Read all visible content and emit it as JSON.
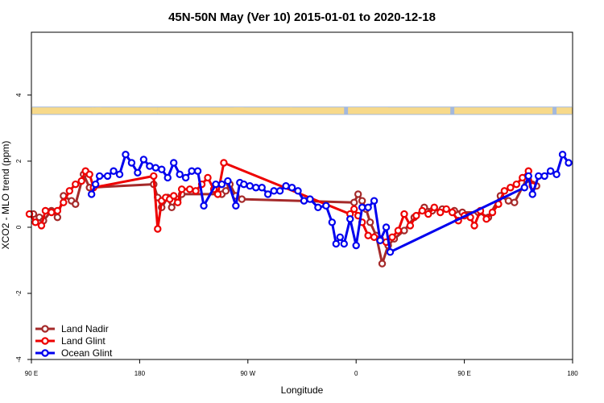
{
  "chart_data": {
    "type": "line",
    "title": "45N-50N May (Ver 10)   2015-01-01 to 2020-12-18",
    "xlabel": "Longitude",
    "ylabel": "XCO2 - MLO trend (ppm)",
    "xlim": [
      -90,
      180
    ],
    "ylim": [
      -4,
      5.9
    ],
    "x_ticks": [
      {
        "value": -90,
        "label": "90 E"
      },
      {
        "value": -36,
        "label": "180"
      },
      {
        "value": 18,
        "label": "90 W"
      },
      {
        "value": 72,
        "label": "0"
      },
      {
        "value": 126,
        "label": "90 E"
      },
      {
        "value": 180,
        "label": "180"
      }
    ],
    "y_ticks": [
      {
        "value": -4,
        "label": "-4"
      },
      {
        "value": -2,
        "label": "-2"
      },
      {
        "value": 0,
        "label": "0"
      },
      {
        "value": 2,
        "label": "2"
      },
      {
        "value": 4,
        "label": "4"
      }
    ],
    "grid": false,
    "legend_position": "bottom-left",
    "map_strip": {
      "y_range": [
        3.4,
        3.65
      ],
      "ocean_color": "#a3b8dd",
      "land_color": "#f7d98a",
      "land_segments": [
        [
          -90,
          -60
        ],
        [
          -59,
          -60
        ],
        [
          -58,
          -55
        ],
        [
          -60,
          -27
        ],
        [
          -27,
          16
        ],
        [
          11,
          40
        ],
        [
          39,
          66
        ],
        [
          68,
          88
        ],
        [
          68,
          119
        ],
        [
          121,
          170
        ],
        [
          172,
          180
        ]
      ]
    },
    "series": [
      {
        "name": "Land Nadir",
        "color": "#a52a2a",
        "points": [
          [
            -89,
            0.4
          ],
          [
            -86,
            0.3
          ],
          [
            -84,
            0.2
          ],
          [
            -80,
            0.5
          ],
          [
            -77,
            0.3
          ],
          [
            -74,
            0.95
          ],
          [
            -70,
            0.8
          ],
          [
            -68,
            0.7
          ],
          [
            -64,
            1.6
          ],
          [
            -61,
            1.2
          ],
          [
            -29,
            1.3
          ],
          [
            -27,
            0.9
          ],
          [
            -25,
            0.6
          ],
          [
            -22,
            0.9
          ],
          [
            -20,
            0.6
          ],
          [
            -17,
            0.85
          ],
          [
            -15,
            1.0
          ],
          [
            5,
            1.0
          ],
          [
            7,
            1.1
          ],
          [
            9,
            1.3
          ],
          [
            12,
            0.95
          ],
          [
            15,
            0.85
          ],
          [
            71,
            0.75
          ],
          [
            73,
            1.0
          ],
          [
            75,
            0.8
          ],
          [
            77,
            0.55
          ],
          [
            79,
            0.15
          ],
          [
            82,
            -0.25
          ],
          [
            85,
            -1.1
          ],
          [
            88,
            -0.55
          ],
          [
            91,
            -0.35
          ],
          [
            96,
            -0.1
          ],
          [
            101,
            0.3
          ],
          [
            106,
            0.6
          ],
          [
            110,
            0.5
          ],
          [
            115,
            0.55
          ],
          [
            121,
            0.5
          ],
          [
            125,
            0.45
          ],
          [
            133,
            0.45
          ],
          [
            138,
            0.3
          ],
          [
            144,
            0.95
          ],
          [
            148,
            0.8
          ],
          [
            151,
            0.75
          ],
          [
            157,
            1.45
          ],
          [
            160,
            1.3
          ],
          [
            162,
            1.25
          ]
        ]
      },
      {
        "name": "Land Glint",
        "color": "#ee0000",
        "points": [
          [
            -91,
            0.4
          ],
          [
            -88,
            0.15
          ],
          [
            -85,
            0.05
          ],
          [
            -83,
            0.5
          ],
          [
            -80,
            0.45
          ],
          [
            -77,
            0.5
          ],
          [
            -74,
            0.75
          ],
          [
            -71,
            1.1
          ],
          [
            -68,
            1.3
          ],
          [
            -65,
            1.4
          ],
          [
            -63,
            1.7
          ],
          [
            -61,
            1.6
          ],
          [
            -59,
            1.2
          ],
          [
            -29,
            1.55
          ],
          [
            -27,
            -0.05
          ],
          [
            -25,
            0.8
          ],
          [
            -23,
            0.9
          ],
          [
            -21,
            0.85
          ],
          [
            -19,
            0.95
          ],
          [
            -17,
            0.75
          ],
          [
            -15,
            1.15
          ],
          [
            -11,
            1.15
          ],
          [
            -8,
            1.1
          ],
          [
            -5,
            1.3
          ],
          [
            -2,
            1.5
          ],
          [
            1,
            1.15
          ],
          [
            3,
            1.0
          ],
          [
            6,
            1.95
          ],
          [
            69,
            0.4
          ],
          [
            71,
            0.55
          ],
          [
            73,
            0.35
          ],
          [
            75,
            0.15
          ],
          [
            78,
            -0.25
          ],
          [
            81,
            -0.3
          ],
          [
            84,
            -0.35
          ],
          [
            87,
            -0.45
          ],
          [
            90,
            -0.3
          ],
          [
            93,
            -0.1
          ],
          [
            96,
            0.4
          ],
          [
            99,
            0.05
          ],
          [
            102,
            0.35
          ],
          [
            105,
            0.5
          ],
          [
            108,
            0.4
          ],
          [
            111,
            0.6
          ],
          [
            114,
            0.45
          ],
          [
            117,
            0.55
          ],
          [
            120,
            0.45
          ],
          [
            123,
            0.2
          ],
          [
            126,
            0.35
          ],
          [
            129,
            0.3
          ],
          [
            131,
            0.05
          ],
          [
            134,
            0.5
          ],
          [
            137,
            0.25
          ],
          [
            140,
            0.45
          ],
          [
            143,
            0.7
          ],
          [
            146,
            1.1
          ],
          [
            149,
            1.2
          ],
          [
            152,
            1.3
          ],
          [
            155,
            1.5
          ],
          [
            158,
            1.7
          ],
          [
            160,
            1.25
          ]
        ]
      },
      {
        "name": "Ocean Glint",
        "color": "#0000ee",
        "points": [
          [
            -60,
            1.0
          ],
          [
            -58,
            1.3
          ],
          [
            -56,
            1.55
          ],
          [
            -52,
            1.55
          ],
          [
            -49,
            1.7
          ],
          [
            -46,
            1.6
          ],
          [
            -43,
            2.2
          ],
          [
            -40,
            1.95
          ],
          [
            -37,
            1.65
          ],
          [
            -34,
            2.05
          ],
          [
            -31,
            1.85
          ],
          [
            -28,
            1.8
          ],
          [
            -25,
            1.75
          ],
          [
            -22,
            1.5
          ],
          [
            -19,
            1.95
          ],
          [
            -16,
            1.6
          ],
          [
            -13,
            1.5
          ],
          [
            -10,
            1.7
          ],
          [
            -7,
            1.7
          ],
          [
            -4,
            0.65
          ],
          [
            2,
            1.3
          ],
          [
            5,
            1.3
          ],
          [
            8,
            1.4
          ],
          [
            12,
            0.65
          ],
          [
            14,
            1.35
          ],
          [
            16,
            1.3
          ],
          [
            19,
            1.25
          ],
          [
            22,
            1.2
          ],
          [
            25,
            1.2
          ],
          [
            28,
            1.0
          ],
          [
            31,
            1.1
          ],
          [
            34,
            1.1
          ],
          [
            37,
            1.25
          ],
          [
            40,
            1.2
          ],
          [
            43,
            1.1
          ],
          [
            46,
            0.8
          ],
          [
            49,
            0.85
          ],
          [
            53,
            0.6
          ],
          [
            57,
            0.65
          ],
          [
            60,
            0.15
          ],
          [
            62,
            -0.5
          ],
          [
            64,
            -0.3
          ],
          [
            66,
            -0.5
          ],
          [
            69,
            0.25
          ],
          [
            72,
            -0.55
          ],
          [
            75,
            0.6
          ],
          [
            78,
            0.6
          ],
          [
            81,
            0.8
          ],
          [
            84,
            -0.4
          ],
          [
            87,
            0.0
          ],
          [
            89,
            -0.75
          ],
          [
            156,
            1.2
          ],
          [
            158,
            1.55
          ],
          [
            160,
            1.0
          ],
          [
            163,
            1.55
          ],
          [
            166,
            1.55
          ],
          [
            169,
            1.7
          ],
          [
            172,
            1.6
          ],
          [
            175,
            2.2
          ],
          [
            178,
            1.95
          ]
        ]
      }
    ]
  }
}
